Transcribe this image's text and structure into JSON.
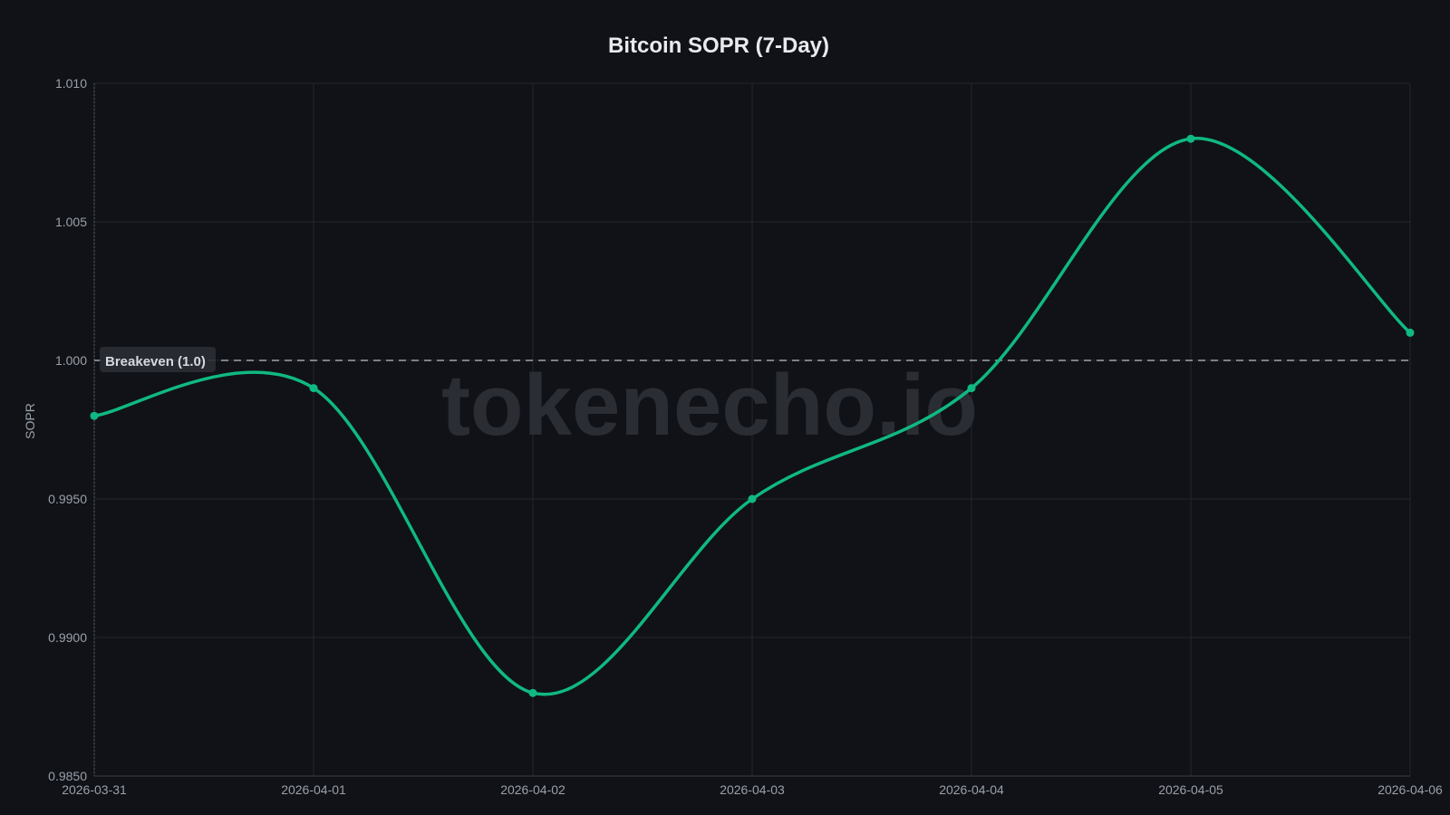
{
  "chart_data": {
    "type": "line",
    "title": "Bitcoin SOPR (7-Day)",
    "xlabel": "",
    "ylabel": "SOPR",
    "x": [
      "2026-03-31",
      "2026-04-01",
      "2026-04-02",
      "2026-04-03",
      "2026-04-04",
      "2026-04-05",
      "2026-04-06"
    ],
    "series": [
      {
        "values": [
          0.998,
          0.999,
          0.988,
          0.995,
          0.999,
          1.008,
          1.001
        ]
      }
    ],
    "ylim": [
      0.985,
      1.01
    ],
    "yticks": [
      "0.9850",
      "0.9900",
      "0.9950",
      "1.000",
      "1.005",
      "1.010"
    ],
    "ytick_values": [
      0.985,
      0.99,
      0.995,
      1.0,
      1.005,
      1.01
    ],
    "grid": true,
    "smooth": true,
    "reference_line": {
      "value": 1.0,
      "label": "Breakeven (1.0)",
      "style": "dashed"
    },
    "watermark": "tokenecho.io",
    "colors": {
      "line": "#10b981",
      "background": "#101217",
      "grid": "#23262c",
      "reference": "#a0a4ab"
    }
  }
}
